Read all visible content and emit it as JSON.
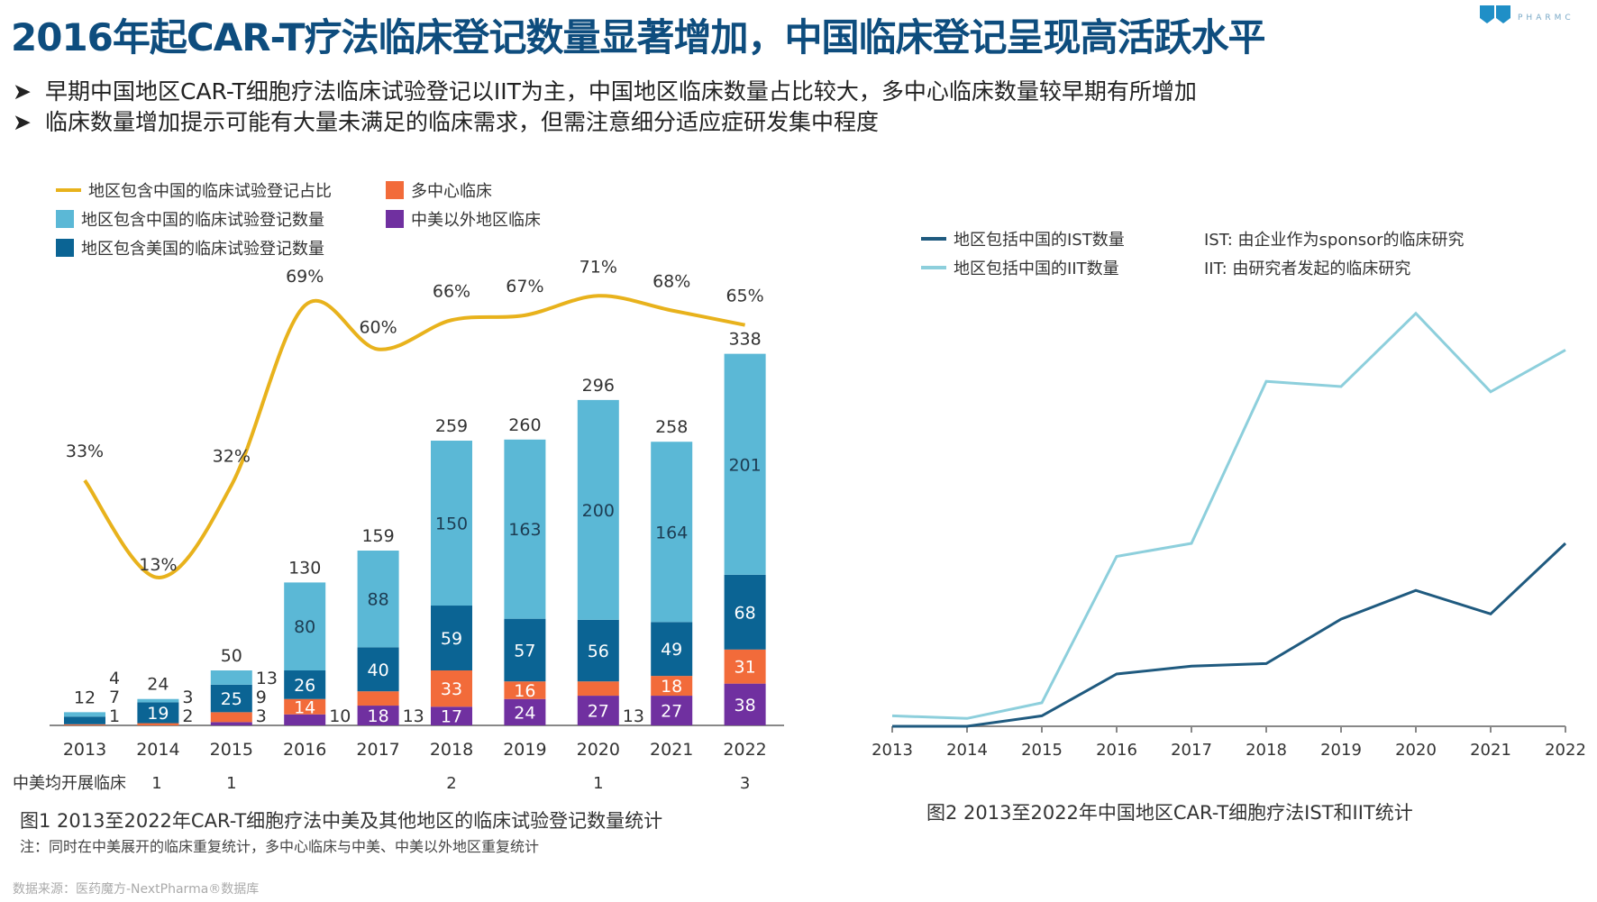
{
  "title": "2016年起CAR-T疗法临床登记数量显著增加，中国临床登记呈现高活跃水平",
  "bullets": [
    "早期中国地区CAR-T细胞疗法临床试验登记以IIT为主，中国地区临床数量占比较大，多中心临床数量较早期有所增加",
    "临床数量增加提示可能有大量未满足的临床需求，但需注意细分适应症研发集中程度"
  ],
  "logo_text": "PHARMC",
  "source": "数据来源：医药魔方-NextPharma®数据库",
  "colors": {
    "title": "#0e4d7e",
    "share_line": "#e8b21c",
    "china": "#5bb8d6",
    "us": "#0b6494",
    "multicenter": "#f26b3a",
    "other": "#7030a0",
    "ist": "#1f5a7f",
    "iit": "#8dcfdc"
  },
  "chart_data": [
    {
      "type": "bar",
      "stacked": true,
      "caption": "图1 2013至2022年CAR-T细胞疗法中美及其他地区的临床试验登记数量统计",
      "note": "注：同时在中美展开的临床重复统计，多中心临床与中美、中美以外地区重复统计",
      "categories": [
        "2013",
        "2014",
        "2015",
        "2016",
        "2017",
        "2018",
        "2019",
        "2020",
        "2021",
        "2022"
      ],
      "series": [
        {
          "name": "中美以外地区临床",
          "values": [
            null,
            null,
            3,
            10,
            18,
            17,
            24,
            27,
            27,
            38
          ]
        },
        {
          "name": "多中心临床",
          "values": [
            1,
            2,
            9,
            14,
            13,
            33,
            16,
            13,
            18,
            31
          ]
        },
        {
          "name": "地区包含美国的临床试验登记数量",
          "values": [
            7,
            19,
            25,
            26,
            40,
            59,
            57,
            56,
            49,
            68
          ]
        },
        {
          "name": "地区包含中国的临床试验登记数量",
          "values": [
            4,
            3,
            13,
            80,
            88,
            150,
            163,
            200,
            164,
            201
          ]
        }
      ],
      "totals": [
        12,
        24,
        50,
        130,
        159,
        259,
        260,
        296,
        258,
        338
      ],
      "line_series": {
        "name": "地区包含中国的临床试验登记占比",
        "values": [
          33,
          13,
          32,
          69,
          60,
          66,
          67,
          71,
          68,
          65
        ],
        "unit": "%"
      },
      "both_row": {
        "label": "中美均开展临床",
        "values": [
          "1",
          "",
          "1",
          "",
          "",
          "2",
          "",
          "1",
          "",
          "3"
        ]
      },
      "legend_placement": "top-left",
      "grid": false
    },
    {
      "type": "line",
      "caption": "图2 2013至2022年中国地区CAR-T细胞疗法IST和IIT统计",
      "categories": [
        "2013",
        "2014",
        "2015",
        "2016",
        "2017",
        "2018",
        "2019",
        "2020",
        "2021",
        "2022"
      ],
      "series": [
        {
          "name": "地区包括中国的IST数量",
          "values": [
            0,
            0,
            4,
            20,
            23,
            24,
            41,
            52,
            43,
            70
          ]
        },
        {
          "name": "地区包括中国的IIT数量",
          "values": [
            4,
            3,
            9,
            65,
            70,
            132,
            130,
            158,
            128,
            144
          ]
        }
      ],
      "definitions": [
        "IST: 由企业作为sponsor的临床研究",
        "IIT: 由研究者发起的临床研究"
      ],
      "ylim": [
        0,
        160
      ],
      "legend_placement": "top-left",
      "grid": false
    }
  ]
}
